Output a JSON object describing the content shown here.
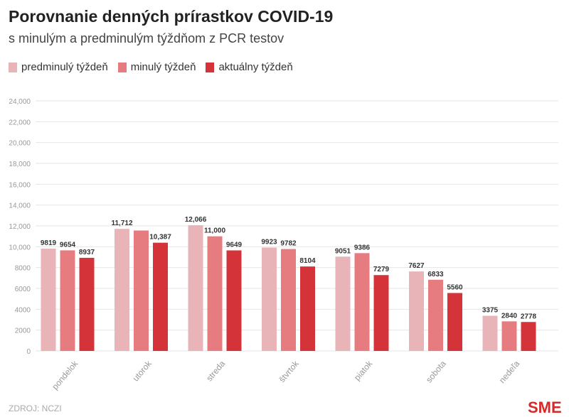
{
  "chart_data": {
    "type": "bar",
    "title": "Porovnanie denných prírastkov COVID-19",
    "subtitle": "s minulým a predminulým týždňom z PCR testov",
    "categories": [
      "pondelok",
      "utorok",
      "streda",
      "štvrtok",
      "piatok",
      "sobota",
      "nedeľa"
    ],
    "series": [
      {
        "name": "predminulý týždeň",
        "color": "#e8b4b8",
        "values": [
          9819,
          11712,
          12066,
          9923,
          9051,
          7627,
          3375
        ],
        "labels": [
          "9819",
          "11,712",
          "12,066",
          "9923",
          "9051",
          "7627",
          "3375"
        ]
      },
      {
        "name": "minulý týždeň",
        "color": "#e67c80",
        "values": [
          9654,
          11560,
          11000,
          9782,
          9386,
          6833,
          2840
        ],
        "labels": [
          "9654",
          null,
          "11,000",
          "9782",
          "9386",
          "6833",
          "2840"
        ]
      },
      {
        "name": "aktuálny týždeň",
        "color": "#d43339",
        "values": [
          8937,
          10387,
          9649,
          8104,
          7279,
          5560,
          2778
        ],
        "labels": [
          "8937",
          "10,387",
          "9649",
          "8104",
          "7279",
          "5560",
          "2778"
        ]
      }
    ],
    "ylim": [
      0,
      24000
    ],
    "yticks": [
      "0",
      "2000",
      "4000",
      "6000",
      "8000",
      "10,000",
      "12,000",
      "14,000",
      "16,000",
      "18,000",
      "20,000",
      "22,000",
      "24,000"
    ],
    "grid": true,
    "legend": "top-left"
  },
  "source": "ZDROJ: NCZI",
  "logo": "SME"
}
